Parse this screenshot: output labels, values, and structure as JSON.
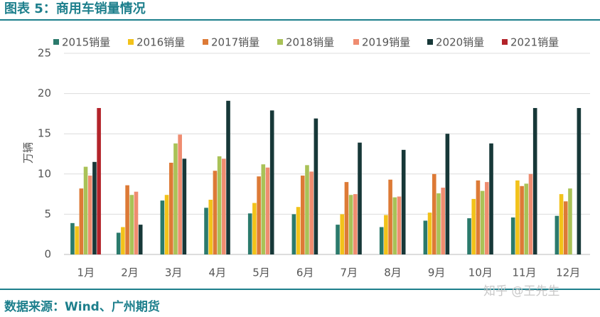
{
  "title": "图表 5：商用车销量情况",
  "source": "数据来源：Wind、广州期货",
  "watermark": "知乎 @王先生",
  "chart_data": {
    "type": "bar",
    "y_label": "万辆",
    "categories": [
      "1月",
      "2月",
      "3月",
      "4月",
      "5月",
      "6月",
      "7月",
      "8月",
      "9月",
      "10月",
      "11月",
      "12月"
    ],
    "ylim": [
      0,
      25
    ],
    "yticks": [
      0,
      5,
      10,
      15,
      20,
      25
    ],
    "grid": true,
    "series": [
      {
        "name": "2015销量",
        "color": "#2b7a6c",
        "values": [
          3.9,
          2.7,
          6.7,
          5.8,
          5.1,
          5.0,
          3.7,
          3.4,
          4.2,
          4.5,
          4.6,
          4.8
        ]
      },
      {
        "name": "2016销量",
        "color": "#f2c21a",
        "values": [
          3.5,
          3.4,
          7.4,
          6.8,
          6.4,
          5.9,
          5.0,
          4.9,
          5.2,
          6.9,
          9.2,
          7.5
        ]
      },
      {
        "name": "2017销量",
        "color": "#dd7a36",
        "values": [
          8.2,
          8.6,
          11.4,
          10.4,
          9.7,
          9.8,
          9.0,
          9.3,
          10.0,
          9.2,
          8.5,
          6.6
        ]
      },
      {
        "name": "2018销量",
        "color": "#a9c257",
        "values": [
          10.9,
          7.4,
          13.8,
          12.2,
          11.2,
          11.1,
          7.4,
          7.1,
          7.6,
          7.9,
          8.8,
          8.2
        ]
      },
      {
        "name": "2019销量",
        "color": "#ef8c70",
        "values": [
          9.8,
          7.8,
          14.9,
          11.9,
          10.8,
          10.3,
          7.5,
          7.2,
          8.3,
          9.0,
          10.0,
          null
        ]
      },
      {
        "name": "2020销量",
        "color": "#173838",
        "values": [
          11.5,
          3.7,
          11.9,
          19.1,
          17.9,
          16.9,
          13.9,
          13.0,
          15.0,
          13.8,
          18.2,
          18.2
        ]
      },
      {
        "name": "2021销量",
        "color": "#b3232a",
        "values": [
          18.2,
          null,
          null,
          null,
          null,
          null,
          null,
          null,
          null,
          null,
          null,
          null
        ]
      }
    ]
  }
}
